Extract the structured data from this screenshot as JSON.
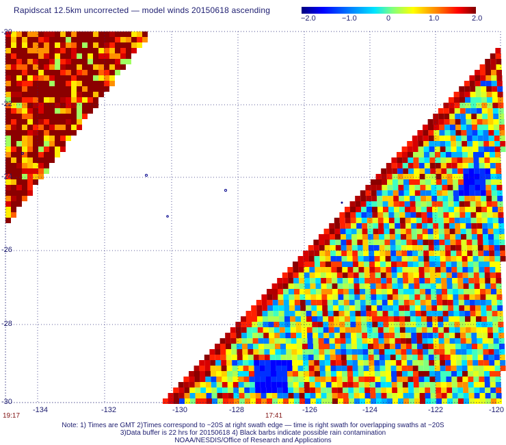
{
  "title": "Rapidscat 12.5km uncorrected — model winds 20150618 ascending",
  "colorbar": {
    "labels": [
      "−2.0",
      "−1.0",
      "0",
      "1.0",
      "2.0"
    ],
    "colors": [
      "#00007f",
      "#0000ff",
      "#0080ff",
      "#00e5ff",
      "#7fff7f",
      "#ffff00",
      "#ff8000",
      "#ff0000",
      "#7f0000"
    ]
  },
  "axes": {
    "lon_labels": [
      "-134",
      "-132",
      "-130",
      "-128",
      "-126",
      "-124",
      "-122",
      "-120"
    ],
    "lat_labels": [
      "-20",
      "-22",
      "-24",
      "-26",
      "-28",
      "-30"
    ]
  },
  "times": {
    "left": "19:17",
    "mid": "17:41"
  },
  "notes": [
    "Note: 1) Times are GMT 2)Times correspond to ~20S at right swath edge — time is right swath for overlapping swaths at ~20S",
    "3)Data buffer is 22 hrs for 20150618 4) Black barbs indicate possible rain contamination",
    "NOAA/NESDIS/Office of Research and Applications"
  ]
}
